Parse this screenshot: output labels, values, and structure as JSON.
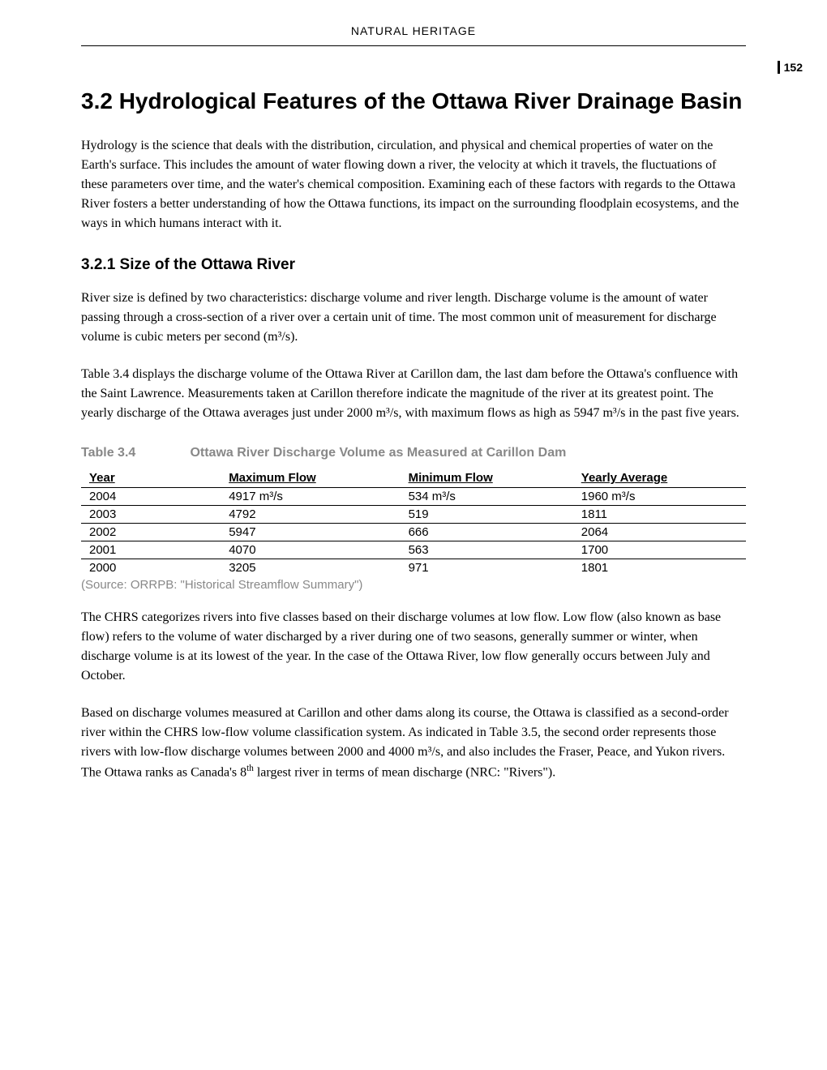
{
  "header": {
    "text": "NATURAL HERITAGE"
  },
  "page_number": "152",
  "main_heading": "3.2  Hydrological Features of the Ottawa River Drainage Basin",
  "paragraphs": {
    "intro": "Hydrology is the science that deals with the distribution, circulation, and physical and chemical properties of water on the Earth's surface. This includes the amount of water flowing down a river, the velocity at which it travels, the fluctuations of these parameters over time, and the water's chemical composition. Examining each of these factors with regards to the Ottawa River fosters a better understanding of how the Ottawa functions, its impact on the surrounding floodplain ecosystems, and the ways in which humans interact with it.",
    "size_p1": "River size is defined by two characteristics: discharge volume and river length. Discharge volume is the amount of water passing through a cross-section of a river over a certain unit of time. The most common unit of measurement for discharge volume is cubic meters per second (m³/s).",
    "size_p2": "Table 3.4 displays the discharge volume of the Ottawa River at Carillon dam, the last dam before the Ottawa's confluence with the Saint Lawrence. Measurements taken at Carillon therefore indicate the magnitude of the river at its greatest point. The yearly discharge of the Ottawa averages just under 2000 m³/s, with maximum flows as high as 5947 m³/s in the past five years.",
    "chrs_p1": "The CHRS categorizes rivers into five classes based on their discharge volumes at low flow. Low flow (also known as base flow) refers to the volume of water discharged by a river during one of two seasons, generally summer or winter, when discharge volume is at its lowest of the year. In the case of the Ottawa River, low flow generally occurs between July and October."
  },
  "sub_heading": "3.2.1   Size of the Ottawa River",
  "table": {
    "caption_label": "Table 3.4",
    "caption_title": "Ottawa River Discharge Volume as Measured at Carillon Dam",
    "columns": [
      "Year",
      "Maximum Flow",
      "Minimum Flow",
      "Yearly Average"
    ],
    "rows": [
      [
        "2004",
        "4917 m³/s",
        "534 m³/s",
        "1960 m³/s"
      ],
      [
        "2003",
        "4792",
        "519",
        "1811"
      ],
      [
        "2002",
        "5947",
        "666",
        "2064"
      ],
      [
        "2001",
        "4070",
        "563",
        "1700"
      ],
      [
        "2000",
        "3205",
        "971",
        "1801"
      ]
    ],
    "source": "(Source: ORRPB: \"Historical Streamflow Summary\")"
  },
  "chrs_p2_parts": {
    "pre": "Based on discharge volumes measured at Carillon and other dams along its course, the Ottawa is classified as a second-order river within the CHRS low-flow volume classification system. As indicated in Table 3.5, the second order represents those rivers with low-flow discharge volumes between 2000 and 4000 m³/s, and also includes the Fraser, Peace, and Yukon rivers. The Ottawa ranks as Canada's 8",
    "sup": "th",
    "post": " largest river in terms of mean discharge (NRC: \"Rivers\")."
  }
}
